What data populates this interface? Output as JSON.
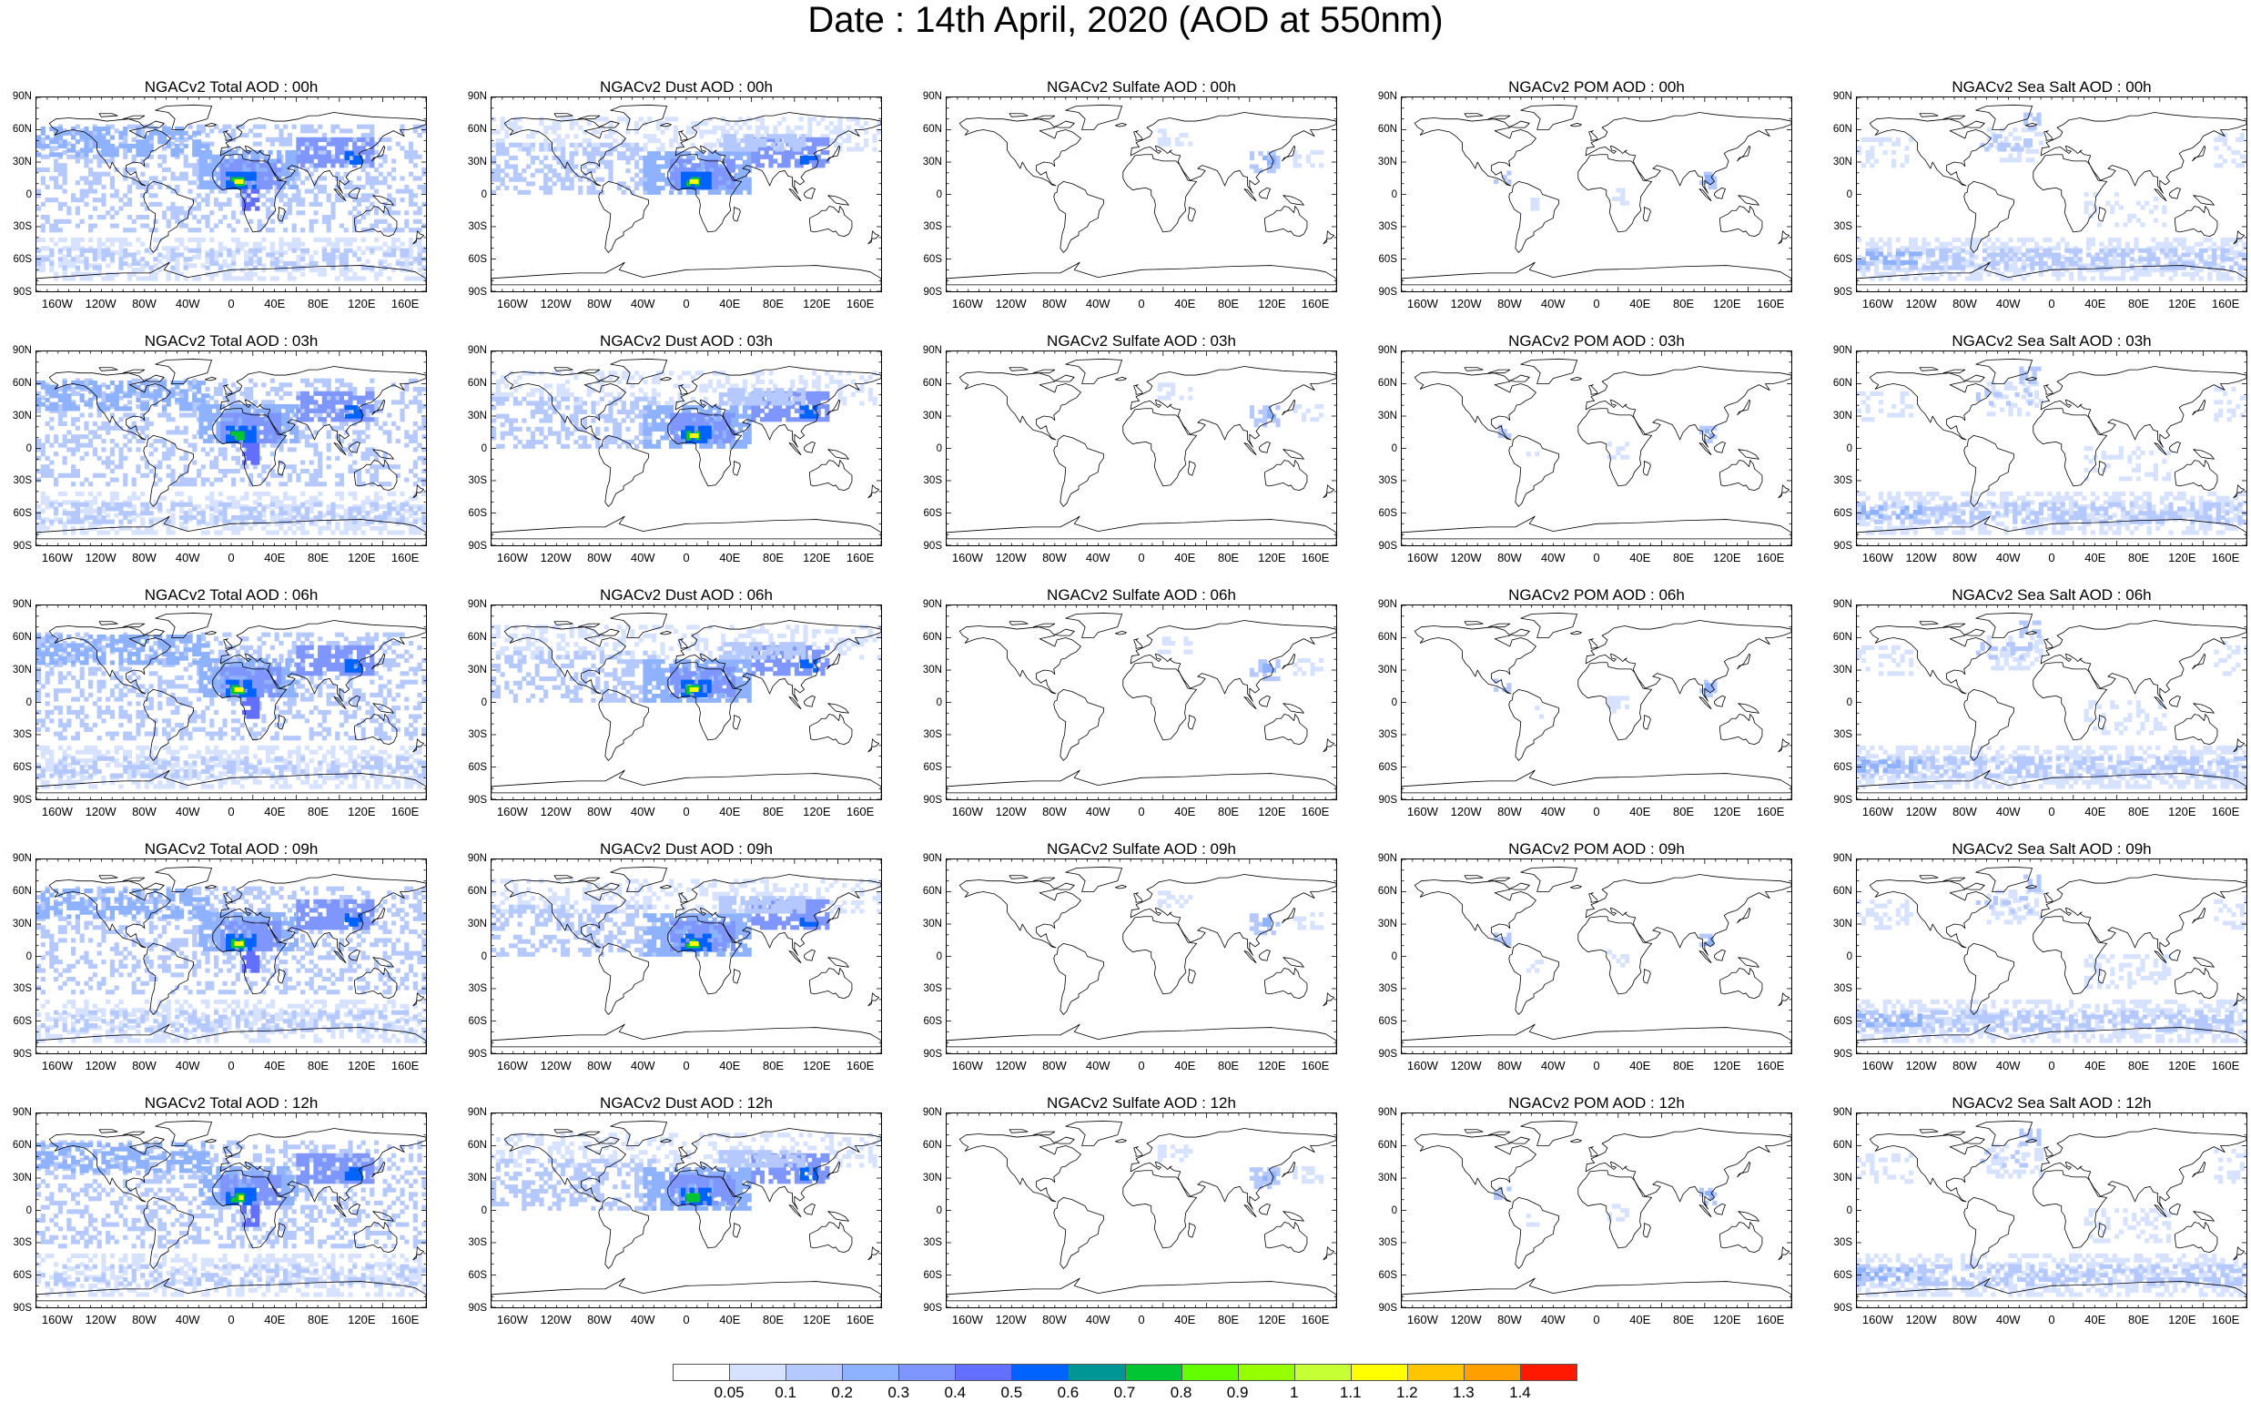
{
  "main_title": "Date : 14th April, 2020 (AOD at 550nm)",
  "lat_labels": [
    "90N",
    "60N",
    "30N",
    "0",
    "30S",
    "60S",
    "90S"
  ],
  "lon_labels": [
    "160W",
    "120W",
    "80W",
    "40W",
    "0",
    "40E",
    "80E",
    "120E",
    "160E"
  ],
  "columns": [
    {
      "product": "total",
      "shading": "broad"
    },
    {
      "product": "dust",
      "shading": "dust"
    },
    {
      "product": "sulfate",
      "shading": "sparse-asia"
    },
    {
      "product": "pom",
      "shading": "sparse-tropics"
    },
    {
      "product": "seasalt",
      "shading": "oceans"
    }
  ],
  "panel_titles": [
    [
      "NGACv2 Total AOD : 00h",
      "NGACv2 Dust AOD : 00h",
      "NGACv2 Sulfate AOD : 00h",
      "NGACv2 POM AOD : 00h",
      "NGACv2 Sea Salt AOD : 00h"
    ],
    [
      "NGACv2 Total AOD : 03h",
      "NGACv2 Dust AOD : 03h",
      "NGACv2 Sulfate AOD : 03h",
      "NGACv2 POM AOD : 03h",
      "NGACv2 Sea Salt AOD : 03h"
    ],
    [
      "NGACv2 Total AOD : 06h",
      "NGACv2 Dust AOD : 06h",
      "NGACv2 Sulfate AOD : 06h",
      "NGACv2 POM AOD : 06h",
      "NGACv2 Sea Salt AOD : 06h"
    ],
    [
      "NGACv2 Total AOD : 09h",
      "NGACv2 Dust AOD : 09h",
      "NGACv2 Sulfate AOD : 09h",
      "NGACv2 POM AOD : 09h",
      "NGACv2 Sea Salt  AOD : 09h"
    ],
    [
      "NGACv2 Total AOD : 12h",
      "NGACv2 Dust AOD : 12h",
      "NGACv2 Sulfate AOD : 12h",
      "NGACv2 POM  AOD : 12h",
      "NGACv2 Sea Salt AOD : 12h"
    ]
  ],
  "colorbar": {
    "colors": [
      "#ffffff",
      "#d6e2ff",
      "#b5c9ff",
      "#8eb2ff",
      "#7f96ff",
      "#6370ff",
      "#0063ff",
      "#009696",
      "#00c633",
      "#63ff00",
      "#96ff00",
      "#c6ff33",
      "#ffff00",
      "#ffc600",
      "#ffa000",
      "#ff7c00",
      "#ff1900"
    ],
    "ticks": [
      "0.05",
      "0.1",
      "0.2",
      "0.3",
      "0.4",
      "0.5",
      "0.6",
      "0.7",
      "0.8",
      "0.9",
      "1",
      "1.1",
      "1.2",
      "1.3",
      "1.4"
    ]
  }
}
